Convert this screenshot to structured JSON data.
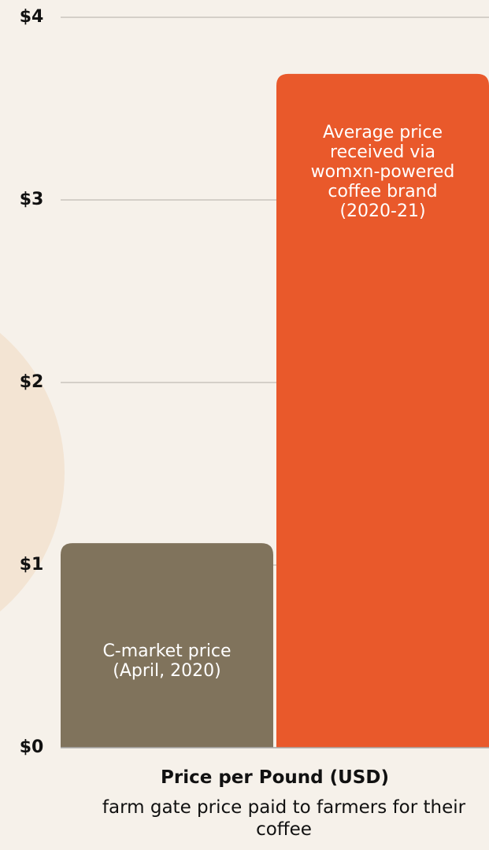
{
  "chart_data": {
    "type": "bar",
    "categories": [
      "C-market price (April, 2020)",
      "Average price received via womxn-powered coffee brand (2020-21)"
    ],
    "values": [
      1.12,
      3.69
    ],
    "colors": [
      "#80735c",
      "#e9592b"
    ],
    "ylim": [
      0,
      4
    ],
    "yticks": [
      {
        "value": 0,
        "label": "$0"
      },
      {
        "value": 1,
        "label": "$1"
      },
      {
        "value": 2,
        "label": "$2"
      },
      {
        "value": 3,
        "label": "$3"
      },
      {
        "value": 4,
        "label": "$4"
      }
    ],
    "grid": true,
    "x_label": "Price per Pound (USD)",
    "x_sublabel": "farm gate price paid to farmers for their coffee"
  }
}
